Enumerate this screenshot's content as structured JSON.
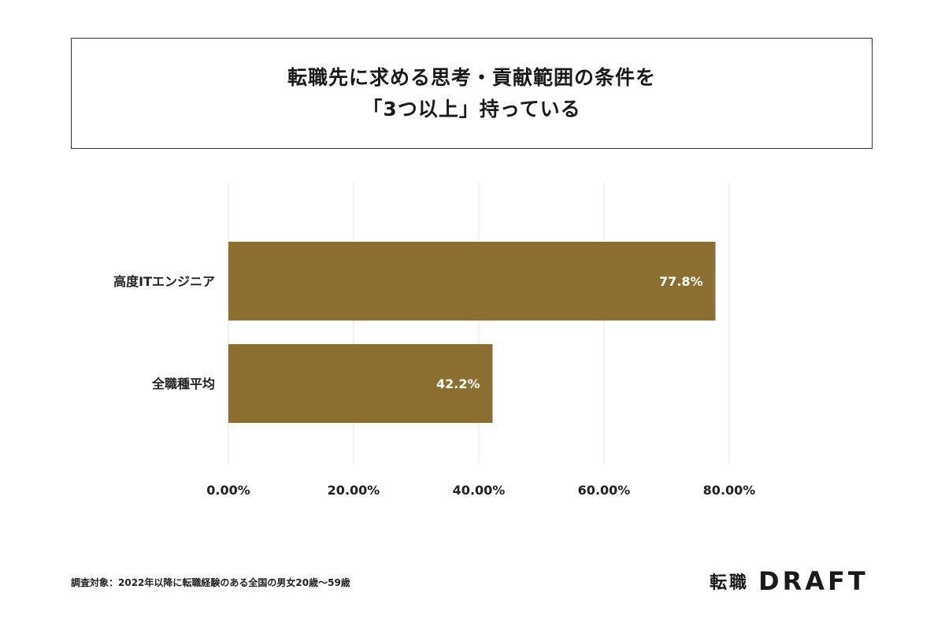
{
  "title": {
    "line1": "転職先に求める思考・貢献範囲の条件を",
    "line2": "「3つ以上」持っている"
  },
  "chart_data": {
    "type": "bar",
    "orientation": "horizontal",
    "categories": [
      "高度ITエンジニア",
      "全職種平均"
    ],
    "values": [
      77.8,
      42.2
    ],
    "value_labels": [
      "77.8%",
      "42.2%"
    ],
    "x_ticks": [
      "0.00%",
      "20.00%",
      "40.00%",
      "60.00%",
      "80.00%"
    ],
    "xlim": [
      0,
      85
    ],
    "grid": true,
    "bar_color": "#8a6f30"
  },
  "source_note": "調査対象：2022年以降に転職経験のある全国の男女20歳〜59歳",
  "logo": {
    "jp": "転職",
    "en": "DRAFT"
  }
}
